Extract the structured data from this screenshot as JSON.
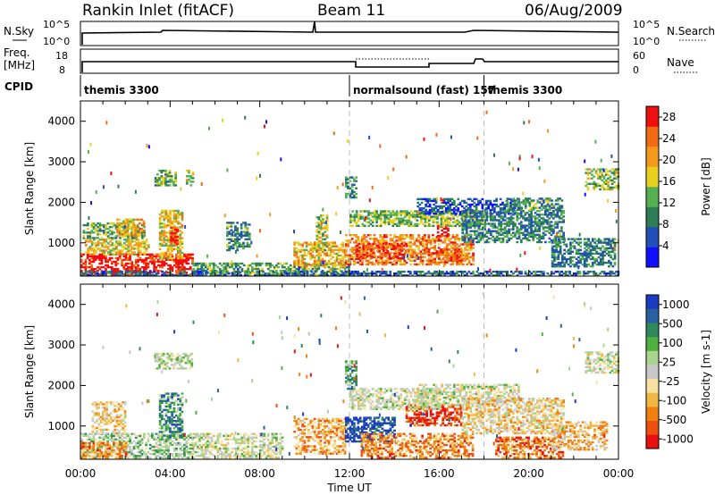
{
  "header": {
    "station": "Rankin Inlet (fitACF)",
    "beam": "Beam 11",
    "date": "06/Aug/2009"
  },
  "noise_panel": {
    "left_label": "N.Sky",
    "right_label": "N.Search",
    "left_ticks": [
      "10^5",
      "10^0"
    ],
    "right_ticks": [
      "10^5",
      "10^0"
    ]
  },
  "freq_panel": {
    "left_label_line1": "Freq.",
    "left_label_line2": "[MHz]",
    "right_label": "Nave",
    "left_ticks": [
      "18",
      "8"
    ],
    "right_ticks": [
      "60",
      "0"
    ]
  },
  "cpid": {
    "label": "CPID",
    "segments": [
      {
        "start_hour": 0,
        "text": "themis 3300"
      },
      {
        "start_hour": 12,
        "text": "normalsound (fast) 157"
      },
      {
        "start_hour": 18,
        "text": "themis 3300"
      }
    ]
  },
  "time_axis": {
    "label": "Time UT",
    "ticks": [
      "00:00",
      "04:00",
      "08:00",
      "12:00",
      "16:00",
      "20:00",
      "00:00"
    ],
    "range_hours": [
      0,
      24
    ]
  },
  "chart_data": [
    {
      "type": "heatmap",
      "name": "power",
      "ylabel": "Slant Range [km]",
      "ylim": [
        180,
        4500
      ],
      "yticks": [
        1000,
        2000,
        3000,
        4000
      ],
      "colorbar_label": "Power [dB]",
      "colorbar_ticks": [
        4,
        8,
        12,
        16,
        20,
        24,
        28
      ],
      "colorbar_range": [
        0,
        30
      ],
      "colors": [
        "#1010ff",
        "#2050b8",
        "#2e7d56",
        "#55b050",
        "#e8d020",
        "#f39a1c",
        "#f26a14",
        "#ee1010"
      ],
      "patches": [
        {
          "t0": 0.0,
          "t1": 5.0,
          "r0": 200,
          "r1": 700,
          "level": 0.95
        },
        {
          "t0": 0.2,
          "t1": 3.0,
          "r0": 700,
          "r1": 1100,
          "level": 0.6
        },
        {
          "t0": 0.1,
          "t1": 2.8,
          "r0": 1100,
          "r1": 1500,
          "level": 0.4
        },
        {
          "t0": 1.6,
          "t1": 2.8,
          "r0": 1150,
          "r1": 1600,
          "level": 0.65
        },
        {
          "t0": 3.5,
          "t1": 4.5,
          "r0": 600,
          "r1": 1800,
          "level": 0.6
        },
        {
          "t0": 4.0,
          "t1": 4.3,
          "r0": 950,
          "r1": 1400,
          "level": 0.9
        },
        {
          "t0": 5.0,
          "t1": 12.0,
          "r0": 200,
          "r1": 500,
          "level": 0.4
        },
        {
          "t0": 6.5,
          "t1": 7.5,
          "r0": 800,
          "r1": 1500,
          "level": 0.35
        },
        {
          "t0": 9.5,
          "t1": 11.8,
          "r0": 400,
          "r1": 1000,
          "level": 0.65
        },
        {
          "t0": 10.5,
          "t1": 11.0,
          "r0": 800,
          "r1": 1700,
          "level": 0.5
        },
        {
          "t0": 11.8,
          "t1": 17.5,
          "r0": 450,
          "r1": 1200,
          "level": 0.75
        },
        {
          "t0": 12.3,
          "t1": 14.5,
          "r0": 600,
          "r1": 1000,
          "level": 0.9
        },
        {
          "t0": 15.5,
          "t1": 17.0,
          "r0": 500,
          "r1": 850,
          "level": 0.85
        },
        {
          "t0": 15.9,
          "t1": 16.4,
          "r0": 1150,
          "r1": 1450,
          "level": 0.95
        },
        {
          "t0": 12.0,
          "t1": 18.0,
          "r0": 1400,
          "r1": 1800,
          "level": 0.45
        },
        {
          "t0": 15.0,
          "t1": 19.5,
          "r0": 1700,
          "r1": 2100,
          "level": 0.2
        },
        {
          "t0": 17.0,
          "t1": 21.5,
          "r0": 1000,
          "r1": 1800,
          "level": 0.3
        },
        {
          "t0": 19.0,
          "t1": 21.5,
          "r0": 1800,
          "r1": 2100,
          "level": 0.35
        },
        {
          "t0": 21.0,
          "t1": 23.8,
          "r0": 400,
          "r1": 1100,
          "level": 0.3
        },
        {
          "t0": 22.5,
          "t1": 24.0,
          "r0": 2300,
          "r1": 2800,
          "level": 0.5
        },
        {
          "t0": 11.8,
          "t1": 12.3,
          "r0": 2100,
          "r1": 2600,
          "level": 0.3
        },
        {
          "t0": 3.3,
          "t1": 4.2,
          "r0": 2400,
          "r1": 2800,
          "level": 0.4
        },
        {
          "t0": 4.7,
          "t1": 5.0,
          "r0": 2400,
          "r1": 2800,
          "level": 0.5
        },
        {
          "t0": 0.0,
          "t1": 24.0,
          "r0": 180,
          "r1": 300,
          "level": 0.25
        }
      ]
    },
    {
      "type": "heatmap",
      "name": "velocity",
      "ylabel": "Slant Range [km]",
      "ylim": [
        180,
        4500
      ],
      "yticks": [
        1000,
        2000,
        3000,
        4000
      ],
      "colorbar_label": "Velocity [m s-1]",
      "colorbar_ticks": [
        1000,
        500,
        100,
        25,
        -25,
        -100,
        -500,
        -1000
      ],
      "colors": [
        "#1a3cc0",
        "#2860a0",
        "#2e8a5a",
        "#50b040",
        "#a8d490",
        "#c8c8c8",
        "#f8e0a0",
        "#f0b840",
        "#f08010",
        "#ef5010",
        "#e81010"
      ],
      "patches": [
        {
          "t0": 0.0,
          "t1": 5.0,
          "r0": 200,
          "r1": 800,
          "level": 0.4
        },
        {
          "t0": 0.0,
          "t1": 2.0,
          "r0": 200,
          "r1": 600,
          "level": 0.75
        },
        {
          "t0": 0.5,
          "t1": 2.0,
          "r0": 800,
          "r1": 1600,
          "level": 0.6
        },
        {
          "t0": 3.5,
          "t1": 4.5,
          "r0": 700,
          "r1": 1800,
          "level": 0.25
        },
        {
          "t0": 5.0,
          "t1": 9.0,
          "r0": 200,
          "r1": 800,
          "level": 0.5
        },
        {
          "t0": 9.5,
          "t1": 11.8,
          "r0": 300,
          "r1": 1200,
          "level": 0.7
        },
        {
          "t0": 11.8,
          "t1": 14.0,
          "r0": 600,
          "r1": 1200,
          "level": 0.05
        },
        {
          "t0": 12.5,
          "t1": 17.5,
          "r0": 200,
          "r1": 800,
          "level": 0.75
        },
        {
          "t0": 14.5,
          "t1": 17.0,
          "r0": 1000,
          "r1": 1500,
          "level": 0.9
        },
        {
          "t0": 12.0,
          "t1": 16.0,
          "r0": 1400,
          "r1": 1900,
          "level": 0.5
        },
        {
          "t0": 15.0,
          "t1": 19.5,
          "r0": 1500,
          "r1": 2000,
          "level": 0.5
        },
        {
          "t0": 17.0,
          "t1": 21.5,
          "r0": 800,
          "r1": 1700,
          "level": 0.6
        },
        {
          "t0": 18.5,
          "t1": 21.5,
          "r0": 200,
          "r1": 700,
          "level": 0.8
        },
        {
          "t0": 21.0,
          "t1": 23.5,
          "r0": 400,
          "r1": 1100,
          "level": 0.65
        },
        {
          "t0": 22.5,
          "t1": 24.0,
          "r0": 2300,
          "r1": 2800,
          "level": 0.5
        },
        {
          "t0": 11.8,
          "t1": 12.3,
          "r0": 1900,
          "r1": 2600,
          "level": 0.3
        },
        {
          "t0": 3.3,
          "t1": 5.0,
          "r0": 2400,
          "r1": 2800,
          "level": 0.45
        }
      ]
    }
  ]
}
